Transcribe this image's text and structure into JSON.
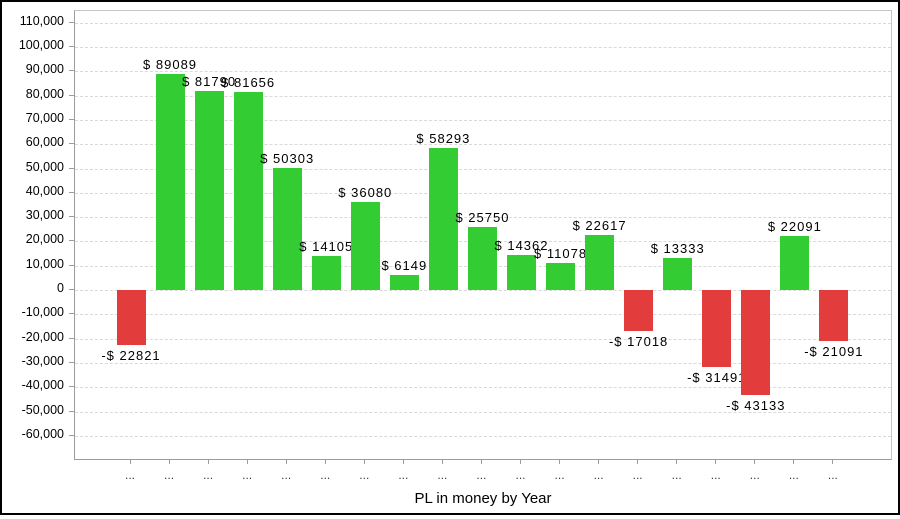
{
  "window": {
    "background": "#FFFFFF",
    "border_color": "#000000"
  },
  "chart_data": {
    "type": "bar",
    "title": "PL in money by Year",
    "xlabel": "PL in money by Year",
    "ylabel": "",
    "categories": [
      "...",
      "...",
      "...",
      "...",
      "...",
      "...",
      "...",
      "...",
      "...",
      "...",
      "...",
      "...",
      "...",
      "...",
      "...",
      "...",
      "...",
      "...",
      "..."
    ],
    "values": [
      -22821,
      89089,
      81790,
      81656,
      50303,
      14105,
      36080,
      6149,
      58293,
      25750,
      14362,
      11078,
      22617,
      -17018,
      13333,
      -31491,
      -43133,
      22091,
      -21091
    ],
    "bar_labels": [
      "-$ 22821",
      "$ 89089",
      "$ 81790",
      "$ 81656",
      "$ 50303",
      "$ 14105",
      "$ 36080",
      "$ 6149",
      "$ 58293",
      "$ 25750",
      "$ 14362",
      "$ 11078",
      "$ 22617",
      "-$ 17018",
      "$ 13333",
      "-$ 31491",
      "-$ 43133",
      "$ 22091",
      "-$ 21091"
    ],
    "ylim": [
      -60000,
      110000
    ],
    "ytick_step": 10000,
    "ytick_labels": [
      "110,000",
      "100,000",
      "90,000",
      "80,000",
      "70,000",
      "60,000",
      "50,000",
      "40,000",
      "30,000",
      "20,000",
      "10,000",
      "0",
      "-10,000",
      "-20,000",
      "-30,000",
      "-40,000",
      "-50,000",
      "-60,000"
    ],
    "grid": "horizontal-dashed",
    "legend": "none",
    "colors": {
      "positive": "#33CC33",
      "negative": "#E23C3C",
      "grid": "#D9D9D9",
      "axis": "#9C9C9C",
      "frame": "#C6C6C6",
      "text": "#000000"
    }
  }
}
